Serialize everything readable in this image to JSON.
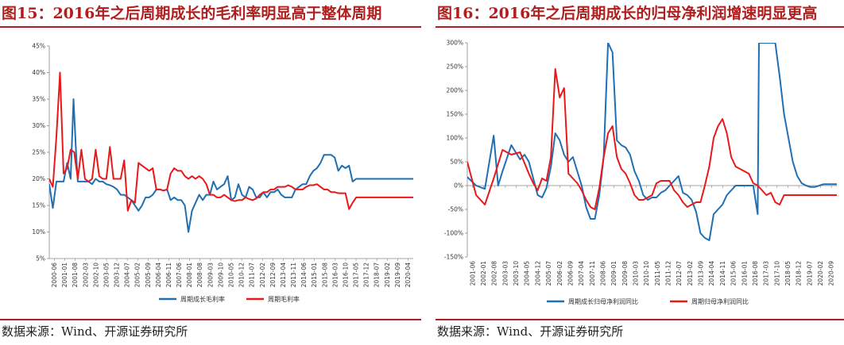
{
  "source_text": "数据来源：Wind、开源证券研究所",
  "colors": {
    "title": "#B01E1E",
    "series_blue": "#1F6FB2",
    "series_red": "#E8181B"
  },
  "chart_data": [
    {
      "type": "line",
      "title": "图15：2016年之后周期成长的毛利率明显高于整体周期",
      "ylim": [
        5,
        45
      ],
      "yticks": [
        5,
        10,
        15,
        20,
        25,
        30,
        35,
        40,
        45
      ],
      "ytick_labels": [
        "5%",
        "10%",
        "15%",
        "20%",
        "25%",
        "30%",
        "35%",
        "40%",
        "45%"
      ],
      "grid": false,
      "legend": "bottom",
      "xtick_labels": [
        "2000-06",
        "2001-01",
        "2001-08",
        "2002-03",
        "2002-10",
        "2003-05",
        "2003-12",
        "2004-07",
        "2005-02",
        "2005-09",
        "2006-04",
        "2006-11",
        "2007-06",
        "2008-01",
        "2008-08",
        "2009-03",
        "2009-10",
        "2010-05",
        "2010-12",
        "2011-07",
        "2012-02",
        "2012-09",
        "2013-04",
        "2013-11",
        "2014-06",
        "2015-01",
        "2015-08",
        "2016-03",
        "2016-10",
        "2017-05",
        "2017-12",
        "2018-07",
        "2019-02",
        "2019-09",
        "2020-04"
      ],
      "series": [
        {
          "name": "周期成长毛利率",
          "color": "#1F6FB2",
          "x": [
            0,
            1,
            2,
            3,
            4,
            5,
            6,
            6.8,
            7.5,
            8,
            9,
            10,
            11,
            12,
            13,
            14,
            15,
            16,
            17,
            18,
            19,
            20,
            21,
            22,
            23,
            24,
            25,
            26,
            27,
            28,
            29,
            30,
            31,
            32,
            33,
            34,
            35,
            36,
            37,
            38,
            39,
            40,
            41,
            42,
            43,
            44,
            45,
            46,
            47,
            48,
            49,
            50,
            51,
            52,
            53,
            54,
            55,
            56,
            57,
            58,
            59,
            60,
            61,
            62,
            63,
            64,
            65,
            66,
            67,
            68,
            69,
            70,
            71,
            72,
            73,
            74,
            75,
            76,
            77,
            78,
            79,
            80,
            81,
            82,
            83,
            84,
            85,
            86,
            87,
            88,
            89,
            90,
            91,
            92,
            93,
            94,
            95,
            96,
            97,
            98,
            99,
            100,
            101,
            102
          ],
          "y": [
            19,
            14.5,
            19.5,
            19.5,
            19.5,
            23,
            20,
            35,
            25,
            19.5,
            19.5,
            19.5,
            19.5,
            19,
            20,
            19.5,
            19.5,
            19,
            18.8,
            18.5,
            18,
            17,
            17,
            16.5,
            16,
            15,
            14,
            15,
            16.5,
            16.5,
            17,
            18,
            18,
            17.8,
            18,
            16,
            16.5,
            16,
            16,
            15,
            10,
            14,
            15.5,
            17,
            16,
            17,
            17,
            19.5,
            18,
            18.5,
            19,
            20.5,
            16,
            16.5,
            19,
            17,
            16.5,
            18.5,
            18,
            16.5,
            16.5,
            17.5,
            16.5,
            17.5,
            17.5,
            18,
            17,
            16.5,
            16.5,
            16.5,
            18,
            18.5,
            19,
            19,
            20.5,
            21.5,
            22,
            23,
            24.5,
            24.5,
            24.5,
            24,
            21.5,
            22.5,
            22,
            22.5,
            19.5,
            20,
            20,
            20,
            20,
            20,
            20,
            20,
            20,
            20,
            20,
            20,
            20,
            20,
            20,
            20,
            20,
            20
          ]
        },
        {
          "name": "周期毛利率",
          "color": "#E8181B",
          "x": [
            0,
            1,
            2,
            3,
            4,
            5,
            6,
            7,
            8,
            9,
            10,
            11,
            12,
            13,
            14,
            15,
            16,
            17,
            18,
            19,
            20,
            21,
            22,
            23,
            24,
            25,
            26,
            27,
            28,
            29,
            30,
            31,
            32,
            33,
            34,
            35,
            36,
            37,
            38,
            39,
            40,
            41,
            42,
            43,
            44,
            45,
            46,
            47,
            48,
            49,
            50,
            51,
            52,
            53,
            54,
            55,
            56,
            57,
            58,
            59,
            60,
            61,
            62,
            63,
            64,
            65,
            66,
            67,
            68,
            69,
            70,
            71,
            72,
            73,
            74,
            75,
            76,
            77,
            78,
            79,
            80,
            81,
            82,
            83,
            84,
            85,
            86,
            87,
            88,
            89,
            90,
            91,
            92,
            93,
            94,
            95,
            96,
            97,
            98,
            99,
            100,
            101,
            102
          ],
          "y": [
            20,
            18.5,
            28,
            40,
            21,
            22,
            25.5,
            25,
            20,
            25.5,
            20,
            19.5,
            20,
            25.5,
            20.5,
            20,
            20,
            26,
            20,
            20,
            20,
            23.5,
            14,
            16,
            15.5,
            23,
            22.5,
            22,
            21.5,
            22,
            18,
            18,
            17.8,
            18,
            21,
            22,
            21.5,
            21.5,
            20.5,
            20,
            20.5,
            20,
            20.5,
            20,
            19,
            17,
            17,
            16.5,
            16.5,
            17,
            16.5,
            16,
            15.8,
            16,
            16,
            16.5,
            16.2,
            16,
            16.3,
            17,
            17.5,
            17.5,
            18,
            18,
            18.5,
            18.5,
            18.5,
            18.8,
            18.5,
            18,
            18,
            18,
            18.5,
            18.8,
            18.8,
            19,
            18.5,
            18,
            18,
            17.5,
            17.5,
            17.3,
            17.3,
            17.3,
            14.3,
            15.5,
            16.5,
            16.5,
            16.5,
            16.5,
            16.5,
            16.5,
            16.5,
            16.5,
            16.5,
            16.5,
            16.5,
            16.5,
            16.5,
            16.5,
            16.5,
            16.5,
            16.5
          ]
        }
      ]
    },
    {
      "type": "line",
      "title": "图16：2016年之后周期成长的归母净利润增速明显更高",
      "ylim": [
        -150,
        300
      ],
      "yticks": [
        -150,
        -100,
        -50,
        0,
        50,
        100,
        150,
        200,
        250,
        300
      ],
      "ytick_labels": [
        "-150%",
        "-100%",
        "-50%",
        "0%",
        "50%",
        "100%",
        "150%",
        "200%",
        "250%",
        "300%"
      ],
      "grid": false,
      "legend": "bottom",
      "xtick_labels": [
        "2001-06",
        "2002-01",
        "2002-08",
        "2003-03",
        "2003-10",
        "2004-05",
        "2004-12",
        "2005-07",
        "2006-02",
        "2006-09",
        "2007-04",
        "2007-11",
        "2008-06",
        "2009-01",
        "2009-08",
        "2010-03",
        "2010-10",
        "2011-05",
        "2011-12",
        "2012-07",
        "2013-02",
        "2013-09",
        "2014-04",
        "2014-11",
        "2015-06",
        "2016-01",
        "2016-08",
        "2017-03",
        "2017-10",
        "2018-05",
        "2018-12",
        "2019-07",
        "2020-02",
        "2020-09"
      ],
      "series": [
        {
          "name": "周期成长归母净利润同比",
          "color": "#1F6FB2",
          "x": [
            0,
            2,
            4,
            6,
            7,
            8,
            10,
            12,
            13,
            14,
            15,
            16,
            17,
            18,
            19,
            20,
            21,
            22,
            23,
            24,
            25,
            26,
            27,
            28,
            29,
            30,
            31,
            32,
            33,
            34,
            35,
            36,
            37,
            38,
            39,
            40,
            41,
            42,
            43,
            44,
            45,
            46,
            47,
            48,
            49,
            50,
            51,
            52,
            53,
            54,
            55,
            56,
            57,
            58,
            59,
            60,
            61,
            62,
            63,
            64,
            65,
            66,
            66.3,
            66.6,
            67,
            70,
            71,
            72,
            73,
            74,
            75,
            76,
            77,
            78,
            79,
            80,
            81,
            82,
            83,
            84
          ],
          "y": [
            18,
            0,
            -7,
            105,
            0,
            30,
            85,
            55,
            65,
            50,
            15,
            -20,
            -25,
            -5,
            40,
            110,
            95,
            65,
            50,
            60,
            30,
            0,
            -45,
            -70,
            -70,
            -20,
            60,
            300,
            280,
            95,
            85,
            80,
            65,
            30,
            10,
            -20,
            -30,
            -25,
            -25,
            -15,
            -10,
            0,
            10,
            20,
            -15,
            -20,
            -30,
            -55,
            -100,
            -110,
            -115,
            -60,
            -50,
            -40,
            -20,
            -10,
            0,
            0,
            0,
            0,
            0,
            -60,
            300,
            300,
            300,
            300,
            230,
            150,
            100,
            50,
            20,
            5,
            0,
            -3,
            -3,
            0,
            3,
            3,
            3,
            3
          ],
          "xmax": 84
        },
        {
          "name": "周期归母净利润同比",
          "color": "#E8181B",
          "x": [
            0,
            2,
            4,
            6,
            8,
            10,
            12,
            14,
            15,
            16,
            17,
            18,
            19,
            20,
            21,
            22,
            23,
            24,
            25,
            26,
            27,
            28,
            29,
            30,
            31,
            32,
            33,
            34,
            35,
            36,
            37,
            38,
            39,
            40,
            41,
            42,
            43,
            44,
            45,
            46,
            47,
            48,
            49,
            50,
            51,
            52,
            53,
            54,
            55,
            56,
            57,
            58,
            59,
            60,
            61,
            62,
            63,
            64,
            65,
            66,
            67,
            68,
            69,
            70,
            71,
            72,
            73,
            74,
            75,
            76,
            77,
            78,
            79,
            80,
            81,
            82,
            83,
            84
          ],
          "y": [
            50,
            -20,
            -40,
            15,
            75,
            65,
            70,
            25,
            5,
            -10,
            15,
            10,
            60,
            245,
            185,
            205,
            25,
            15,
            5,
            -10,
            -30,
            -45,
            -50,
            -5,
            60,
            110,
            125,
            60,
            35,
            25,
            5,
            -20,
            -30,
            -30,
            -25,
            -20,
            5,
            10,
            10,
            10,
            -10,
            -20,
            -35,
            -45,
            -40,
            -35,
            -35,
            0,
            40,
            100,
            125,
            140,
            110,
            60,
            40,
            35,
            30,
            25,
            5,
            0,
            -10,
            -20,
            -15,
            -35,
            -40,
            -20,
            -20,
            -20,
            -20,
            -20,
            -20,
            -20,
            -20,
            -20,
            -20,
            -20,
            -20,
            -20
          ]
        }
      ]
    }
  ]
}
